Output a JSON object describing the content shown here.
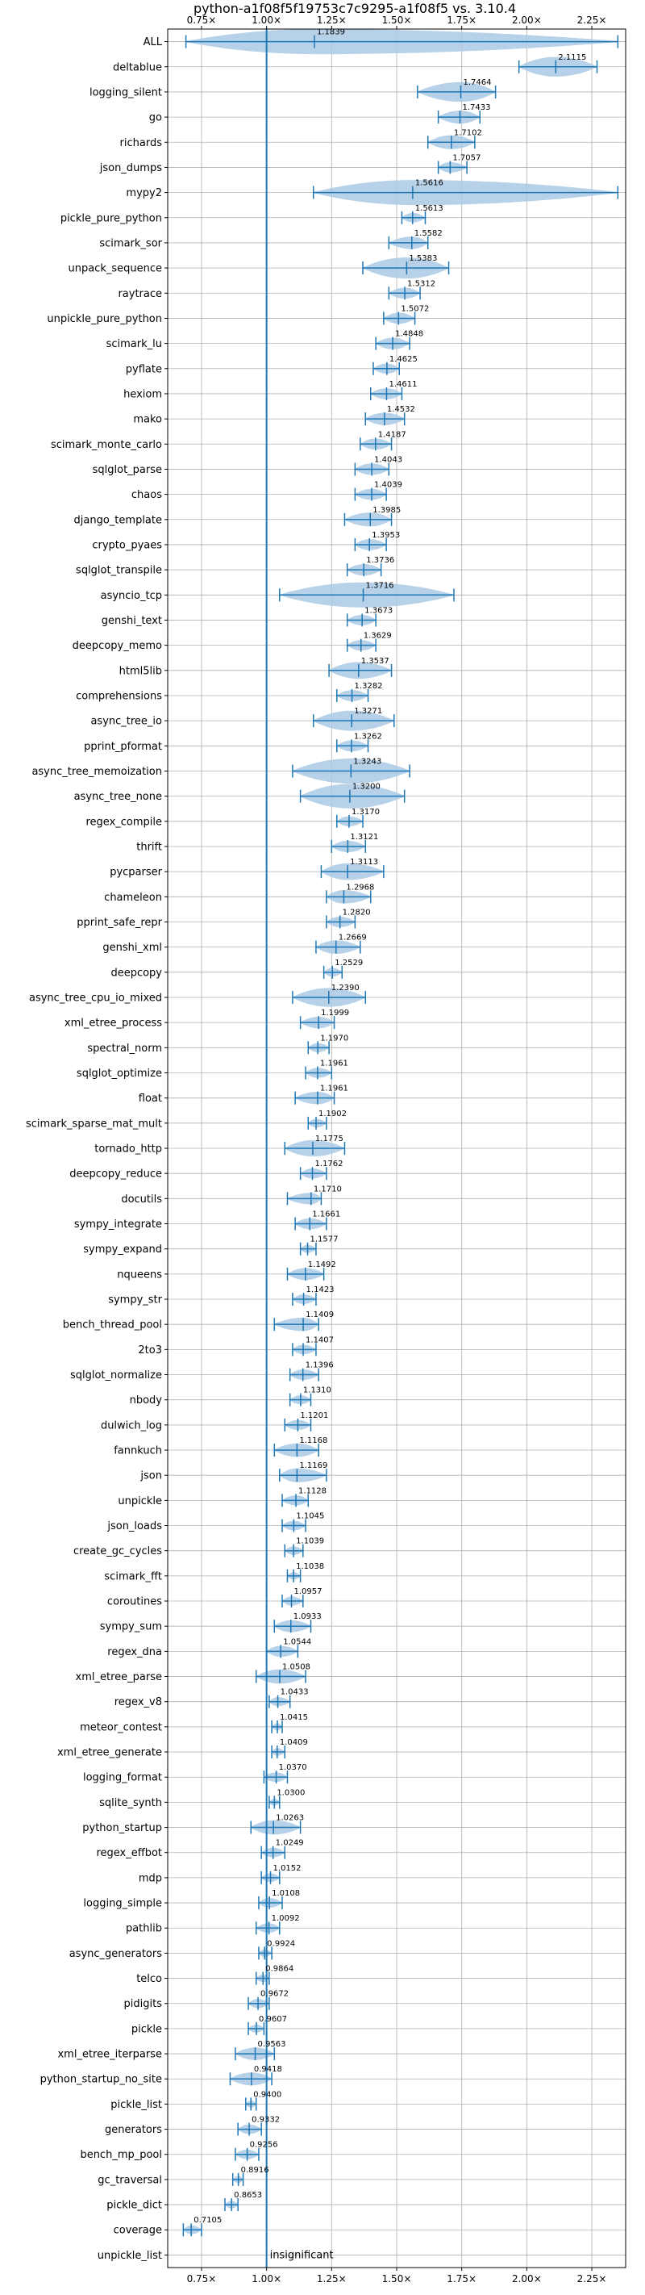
{
  "chart_data": {
    "type": "violin",
    "title": "python-a1f08f5f19753c7c9295-a1f08f5 vs. 3.10.4",
    "xlabel": "",
    "ylabel": "",
    "xlim": [
      0.62,
      2.38
    ],
    "x_ticks": [
      {
        "value": 0.75,
        "label": "0.75×"
      },
      {
        "value": 1.0,
        "label": "1.00×"
      },
      {
        "value": 1.25,
        "label": "1.25×"
      },
      {
        "value": 1.5,
        "label": "1.50×"
      },
      {
        "value": 1.75,
        "label": "1.75×"
      },
      {
        "value": 2.0,
        "label": "2.00×"
      },
      {
        "value": 2.25,
        "label": "2.25×"
      }
    ],
    "grid": true,
    "reference_line": 1.0,
    "colors": {
      "violin_fill": "#a9c9e4",
      "line": "#1f77b4",
      "grid": "#b0b0b0"
    },
    "note_label": "insignificant",
    "series": [
      {
        "name": "ALL",
        "median": 1.1839,
        "min": 0.69,
        "max": 2.35,
        "label": ""
      },
      {
        "name": "deltablue",
        "median": 2.1115,
        "min": 1.97,
        "max": 2.27,
        "label": "2.1115"
      },
      {
        "name": "logging_silent",
        "median": 1.7464,
        "min": 1.58,
        "max": 1.88,
        "label": "1.7464"
      },
      {
        "name": "go",
        "median": 1.7433,
        "min": 1.66,
        "max": 1.82,
        "label": "1.7433"
      },
      {
        "name": "richards",
        "median": 1.7102,
        "min": 1.62,
        "max": 1.8,
        "label": "1.7102"
      },
      {
        "name": "json_dumps",
        "median": 1.7057,
        "min": 1.66,
        "max": 1.77,
        "label": "1.7057"
      },
      {
        "name": "mypy2",
        "median": 1.5616,
        "min": 1.18,
        "max": 2.35,
        "label": "1.5616"
      },
      {
        "name": "pickle_pure_python",
        "median": 1.5613,
        "min": 1.52,
        "max": 1.61,
        "label": "1.5613"
      },
      {
        "name": "scimark_sor",
        "median": 1.5582,
        "min": 1.47,
        "max": 1.62,
        "label": "1.5582"
      },
      {
        "name": "unpack_sequence",
        "median": 1.5383,
        "min": 1.37,
        "max": 1.7,
        "label": "1.5383"
      },
      {
        "name": "raytrace",
        "median": 1.5312,
        "min": 1.47,
        "max": 1.59,
        "label": "1.5312"
      },
      {
        "name": "unpickle_pure_python",
        "median": 1.5072,
        "min": 1.45,
        "max": 1.57,
        "label": "1.5072"
      },
      {
        "name": "scimark_lu",
        "median": 1.4848,
        "min": 1.42,
        "max": 1.55,
        "label": "1.4848"
      },
      {
        "name": "pyflate",
        "median": 1.4625,
        "min": 1.41,
        "max": 1.51,
        "label": "1.4625"
      },
      {
        "name": "hexiom",
        "median": 1.4611,
        "min": 1.4,
        "max": 1.52,
        "label": "1.4611"
      },
      {
        "name": "mako",
        "median": 1.4532,
        "min": 1.38,
        "max": 1.53,
        "label": "1.4532"
      },
      {
        "name": "scimark_monte_carlo",
        "median": 1.4187,
        "min": 1.36,
        "max": 1.48,
        "label": "1.4187"
      },
      {
        "name": "sqlglot_parse",
        "median": 1.4043,
        "min": 1.34,
        "max": 1.47,
        "label": "1.4043"
      },
      {
        "name": "chaos",
        "median": 1.4039,
        "min": 1.34,
        "max": 1.46,
        "label": "1.4039"
      },
      {
        "name": "django_template",
        "median": 1.3985,
        "min": 1.3,
        "max": 1.48,
        "label": "1.3985"
      },
      {
        "name": "crypto_pyaes",
        "median": 1.3953,
        "min": 1.34,
        "max": 1.46,
        "label": "1.3953"
      },
      {
        "name": "sqlglot_transpile",
        "median": 1.3736,
        "min": 1.31,
        "max": 1.44,
        "label": "1.3736"
      },
      {
        "name": "asyncio_tcp",
        "median": 1.3716,
        "min": 1.05,
        "max": 1.72,
        "label": "1.3716"
      },
      {
        "name": "genshi_text",
        "median": 1.3673,
        "min": 1.31,
        "max": 1.42,
        "label": "1.3673"
      },
      {
        "name": "deepcopy_memo",
        "median": 1.3629,
        "min": 1.31,
        "max": 1.42,
        "label": "1.3629"
      },
      {
        "name": "html5lib",
        "median": 1.3537,
        "min": 1.24,
        "max": 1.48,
        "label": "1.3537"
      },
      {
        "name": "comprehensions",
        "median": 1.3282,
        "min": 1.27,
        "max": 1.39,
        "label": "1.3282"
      },
      {
        "name": "async_tree_io",
        "median": 1.3271,
        "min": 1.18,
        "max": 1.49,
        "label": "1.3271"
      },
      {
        "name": "pprint_pformat",
        "median": 1.3262,
        "min": 1.27,
        "max": 1.39,
        "label": "1.3262"
      },
      {
        "name": "async_tree_memoization",
        "median": 1.3243,
        "min": 1.1,
        "max": 1.55,
        "label": "1.3243"
      },
      {
        "name": "async_tree_none",
        "median": 1.32,
        "min": 1.13,
        "max": 1.53,
        "label": "1.3200"
      },
      {
        "name": "regex_compile",
        "median": 1.317,
        "min": 1.27,
        "max": 1.37,
        "label": "1.3170"
      },
      {
        "name": "thrift",
        "median": 1.3121,
        "min": 1.25,
        "max": 1.38,
        "label": "1.3121"
      },
      {
        "name": "pycparser",
        "median": 1.3113,
        "min": 1.21,
        "max": 1.45,
        "label": "1.3113"
      },
      {
        "name": "chameleon",
        "median": 1.2968,
        "min": 1.23,
        "max": 1.4,
        "label": "1.2968"
      },
      {
        "name": "pprint_safe_repr",
        "median": 1.282,
        "min": 1.23,
        "max": 1.34,
        "label": "1.2820"
      },
      {
        "name": "genshi_xml",
        "median": 1.2669,
        "min": 1.19,
        "max": 1.36,
        "label": "1.2669"
      },
      {
        "name": "deepcopy",
        "median": 1.2529,
        "min": 1.22,
        "max": 1.29,
        "label": "1.2529"
      },
      {
        "name": "async_tree_cpu_io_mixed",
        "median": 1.239,
        "min": 1.1,
        "max": 1.38,
        "label": "1.2390"
      },
      {
        "name": "xml_etree_process",
        "median": 1.1999,
        "min": 1.13,
        "max": 1.26,
        "label": "1.1999"
      },
      {
        "name": "spectral_norm",
        "median": 1.197,
        "min": 1.16,
        "max": 1.24,
        "label": "1.1970"
      },
      {
        "name": "sqlglot_optimize",
        "median": 1.1961,
        "min": 1.15,
        "max": 1.25,
        "label": "1.1961"
      },
      {
        "name": "float",
        "median": 1.1961,
        "min": 1.11,
        "max": 1.26,
        "label": "1.1961"
      },
      {
        "name": "scimark_sparse_mat_mult",
        "median": 1.1902,
        "min": 1.16,
        "max": 1.23,
        "label": "1.1902"
      },
      {
        "name": "tornado_http",
        "median": 1.1775,
        "min": 1.07,
        "max": 1.3,
        "label": "1.1775"
      },
      {
        "name": "deepcopy_reduce",
        "median": 1.1762,
        "min": 1.13,
        "max": 1.23,
        "label": "1.1762"
      },
      {
        "name": "docutils",
        "median": 1.171,
        "min": 1.08,
        "max": 1.21,
        "label": "1.1710"
      },
      {
        "name": "sympy_integrate",
        "median": 1.1661,
        "min": 1.11,
        "max": 1.23,
        "label": "1.1661"
      },
      {
        "name": "sympy_expand",
        "median": 1.1577,
        "min": 1.13,
        "max": 1.19,
        "label": "1.1577"
      },
      {
        "name": "nqueens",
        "median": 1.1492,
        "min": 1.08,
        "max": 1.22,
        "label": "1.1492"
      },
      {
        "name": "sympy_str",
        "median": 1.1423,
        "min": 1.1,
        "max": 1.19,
        "label": "1.1423"
      },
      {
        "name": "bench_thread_pool",
        "median": 1.1409,
        "min": 1.03,
        "max": 1.2,
        "label": "1.1409"
      },
      {
        "name": "2to3",
        "median": 1.1407,
        "min": 1.1,
        "max": 1.19,
        "label": "1.1407"
      },
      {
        "name": "sqlglot_normalize",
        "median": 1.1396,
        "min": 1.09,
        "max": 1.2,
        "label": "1.1396"
      },
      {
        "name": "nbody",
        "median": 1.131,
        "min": 1.09,
        "max": 1.17,
        "label": "1.1310"
      },
      {
        "name": "dulwich_log",
        "median": 1.1201,
        "min": 1.07,
        "max": 1.17,
        "label": "1.1201"
      },
      {
        "name": "fannkuch",
        "median": 1.1168,
        "min": 1.03,
        "max": 1.2,
        "label": "1.1168"
      },
      {
        "name": "json",
        "median": 1.1169,
        "min": 1.05,
        "max": 1.23,
        "label": "1.1169"
      },
      {
        "name": "unpickle",
        "median": 1.1128,
        "min": 1.06,
        "max": 1.16,
        "label": "1.1128"
      },
      {
        "name": "json_loads",
        "median": 1.1045,
        "min": 1.06,
        "max": 1.15,
        "label": "1.1045"
      },
      {
        "name": "create_gc_cycles",
        "median": 1.1039,
        "min": 1.07,
        "max": 1.14,
        "label": "1.1039"
      },
      {
        "name": "scimark_fft",
        "median": 1.1038,
        "min": 1.08,
        "max": 1.13,
        "label": "1.1038"
      },
      {
        "name": "coroutines",
        "median": 1.0957,
        "min": 1.06,
        "max": 1.14,
        "label": "1.0957"
      },
      {
        "name": "sympy_sum",
        "median": 1.0933,
        "min": 1.03,
        "max": 1.17,
        "label": "1.0933"
      },
      {
        "name": "regex_dna",
        "median": 1.0544,
        "min": 1.0,
        "max": 1.12,
        "label": "1.0544"
      },
      {
        "name": "xml_etree_parse",
        "median": 1.0508,
        "min": 0.96,
        "max": 1.15,
        "label": "1.0508"
      },
      {
        "name": "regex_v8",
        "median": 1.0433,
        "min": 1.01,
        "max": 1.09,
        "label": "1.0433"
      },
      {
        "name": "meteor_contest",
        "median": 1.0415,
        "min": 1.02,
        "max": 1.06,
        "label": "1.0415"
      },
      {
        "name": "xml_etree_generate",
        "median": 1.0409,
        "min": 1.02,
        "max": 1.07,
        "label": "1.0409"
      },
      {
        "name": "logging_format",
        "median": 1.037,
        "min": 0.99,
        "max": 1.08,
        "label": "1.0370"
      },
      {
        "name": "sqlite_synth",
        "median": 1.03,
        "min": 1.01,
        "max": 1.05,
        "label": "1.0300"
      },
      {
        "name": "python_startup",
        "median": 1.0263,
        "min": 0.94,
        "max": 1.13,
        "label": "1.0263"
      },
      {
        "name": "regex_effbot",
        "median": 1.0249,
        "min": 0.98,
        "max": 1.07,
        "label": "1.0249"
      },
      {
        "name": "mdp",
        "median": 1.0152,
        "min": 0.98,
        "max": 1.05,
        "label": "1.0152"
      },
      {
        "name": "logging_simple",
        "median": 1.0108,
        "min": 0.97,
        "max": 1.06,
        "label": "1.0108"
      },
      {
        "name": "pathlib",
        "median": 1.0092,
        "min": 0.96,
        "max": 1.05,
        "label": "1.0092"
      },
      {
        "name": "async_generators",
        "median": 0.9924,
        "min": 0.97,
        "max": 1.02,
        "label": "0.9924"
      },
      {
        "name": "telco",
        "median": 0.9864,
        "min": 0.96,
        "max": 1.01,
        "label": "0.9864"
      },
      {
        "name": "pidigits",
        "median": 0.9672,
        "min": 0.93,
        "max": 1.01,
        "label": "0.9672"
      },
      {
        "name": "pickle",
        "median": 0.9607,
        "min": 0.93,
        "max": 0.99,
        "label": "0.9607"
      },
      {
        "name": "xml_etree_iterparse",
        "median": 0.9563,
        "min": 0.88,
        "max": 1.03,
        "label": "0.9563"
      },
      {
        "name": "python_startup_no_site",
        "median": 0.9418,
        "min": 0.86,
        "max": 1.02,
        "label": "0.9418"
      },
      {
        "name": "pickle_list",
        "median": 0.94,
        "min": 0.92,
        "max": 0.96,
        "label": "0.9400"
      },
      {
        "name": "generators",
        "median": 0.9332,
        "min": 0.89,
        "max": 0.98,
        "label": "0.9332"
      },
      {
        "name": "bench_mp_pool",
        "median": 0.9256,
        "min": 0.88,
        "max": 0.97,
        "label": "0.9256"
      },
      {
        "name": "gc_traversal",
        "median": 0.8916,
        "min": 0.87,
        "max": 0.91,
        "label": "0.8916"
      },
      {
        "name": "pickle_dict",
        "median": 0.8653,
        "min": 0.84,
        "max": 0.89,
        "label": "0.8653"
      },
      {
        "name": "coverage",
        "median": 0.7105,
        "min": 0.68,
        "max": 0.75,
        "label": "0.7105"
      },
      {
        "name": "unpickle_list",
        "median": null,
        "min": null,
        "max": null,
        "label": ""
      }
    ]
  }
}
